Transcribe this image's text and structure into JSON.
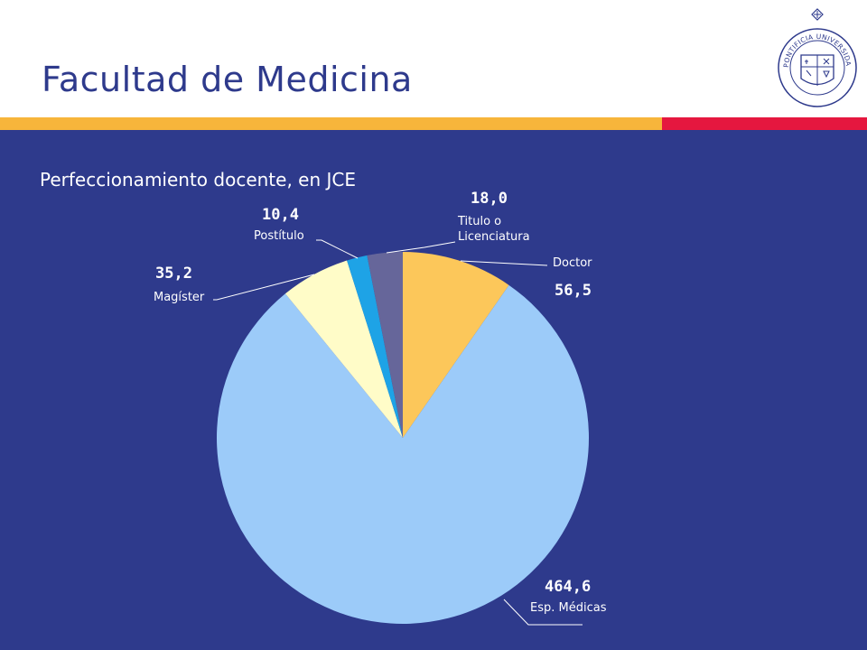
{
  "header": {
    "title": "Facultad de Medicina",
    "stripe_colors": [
      "#f7b53b",
      "#e5173f"
    ],
    "seal": {
      "text": "PONTIFICIA UNIVERSIDAD CATOLICA DE CHILE",
      "icon": "university-seal-icon"
    }
  },
  "colors": {
    "background": "#2e3a8c",
    "label": "#ffffff"
  },
  "chart_data": {
    "type": "pie",
    "title": "Perfeccionamiento docente, en JCE",
    "slices": [
      {
        "name": "Doctor",
        "value": 56.5,
        "value_label": "56,5",
        "label_lines": [
          "Doctor"
        ],
        "color": "#fcc75a"
      },
      {
        "name": "Esp. Médicas",
        "value": 464.6,
        "value_label": "464,6",
        "label_lines": [
          "Esp. Médicas"
        ],
        "color": "#9ccbf9"
      },
      {
        "name": "Magíster",
        "value": 35.2,
        "value_label": "35,2",
        "label_lines": [
          "Magíster"
        ],
        "color": "#fffcc8"
      },
      {
        "name": "Postítulo",
        "value": 10.4,
        "value_label": "10,4",
        "label_lines": [
          "Postítulo"
        ],
        "color": "#1ea3e6"
      },
      {
        "name": "Titulo o Licenciatura",
        "value": 18.0,
        "value_label": "18,0",
        "label_lines": [
          "Titulo o",
          "Licenciatura"
        ],
        "color": "#66669a"
      }
    ],
    "legend": "none"
  }
}
